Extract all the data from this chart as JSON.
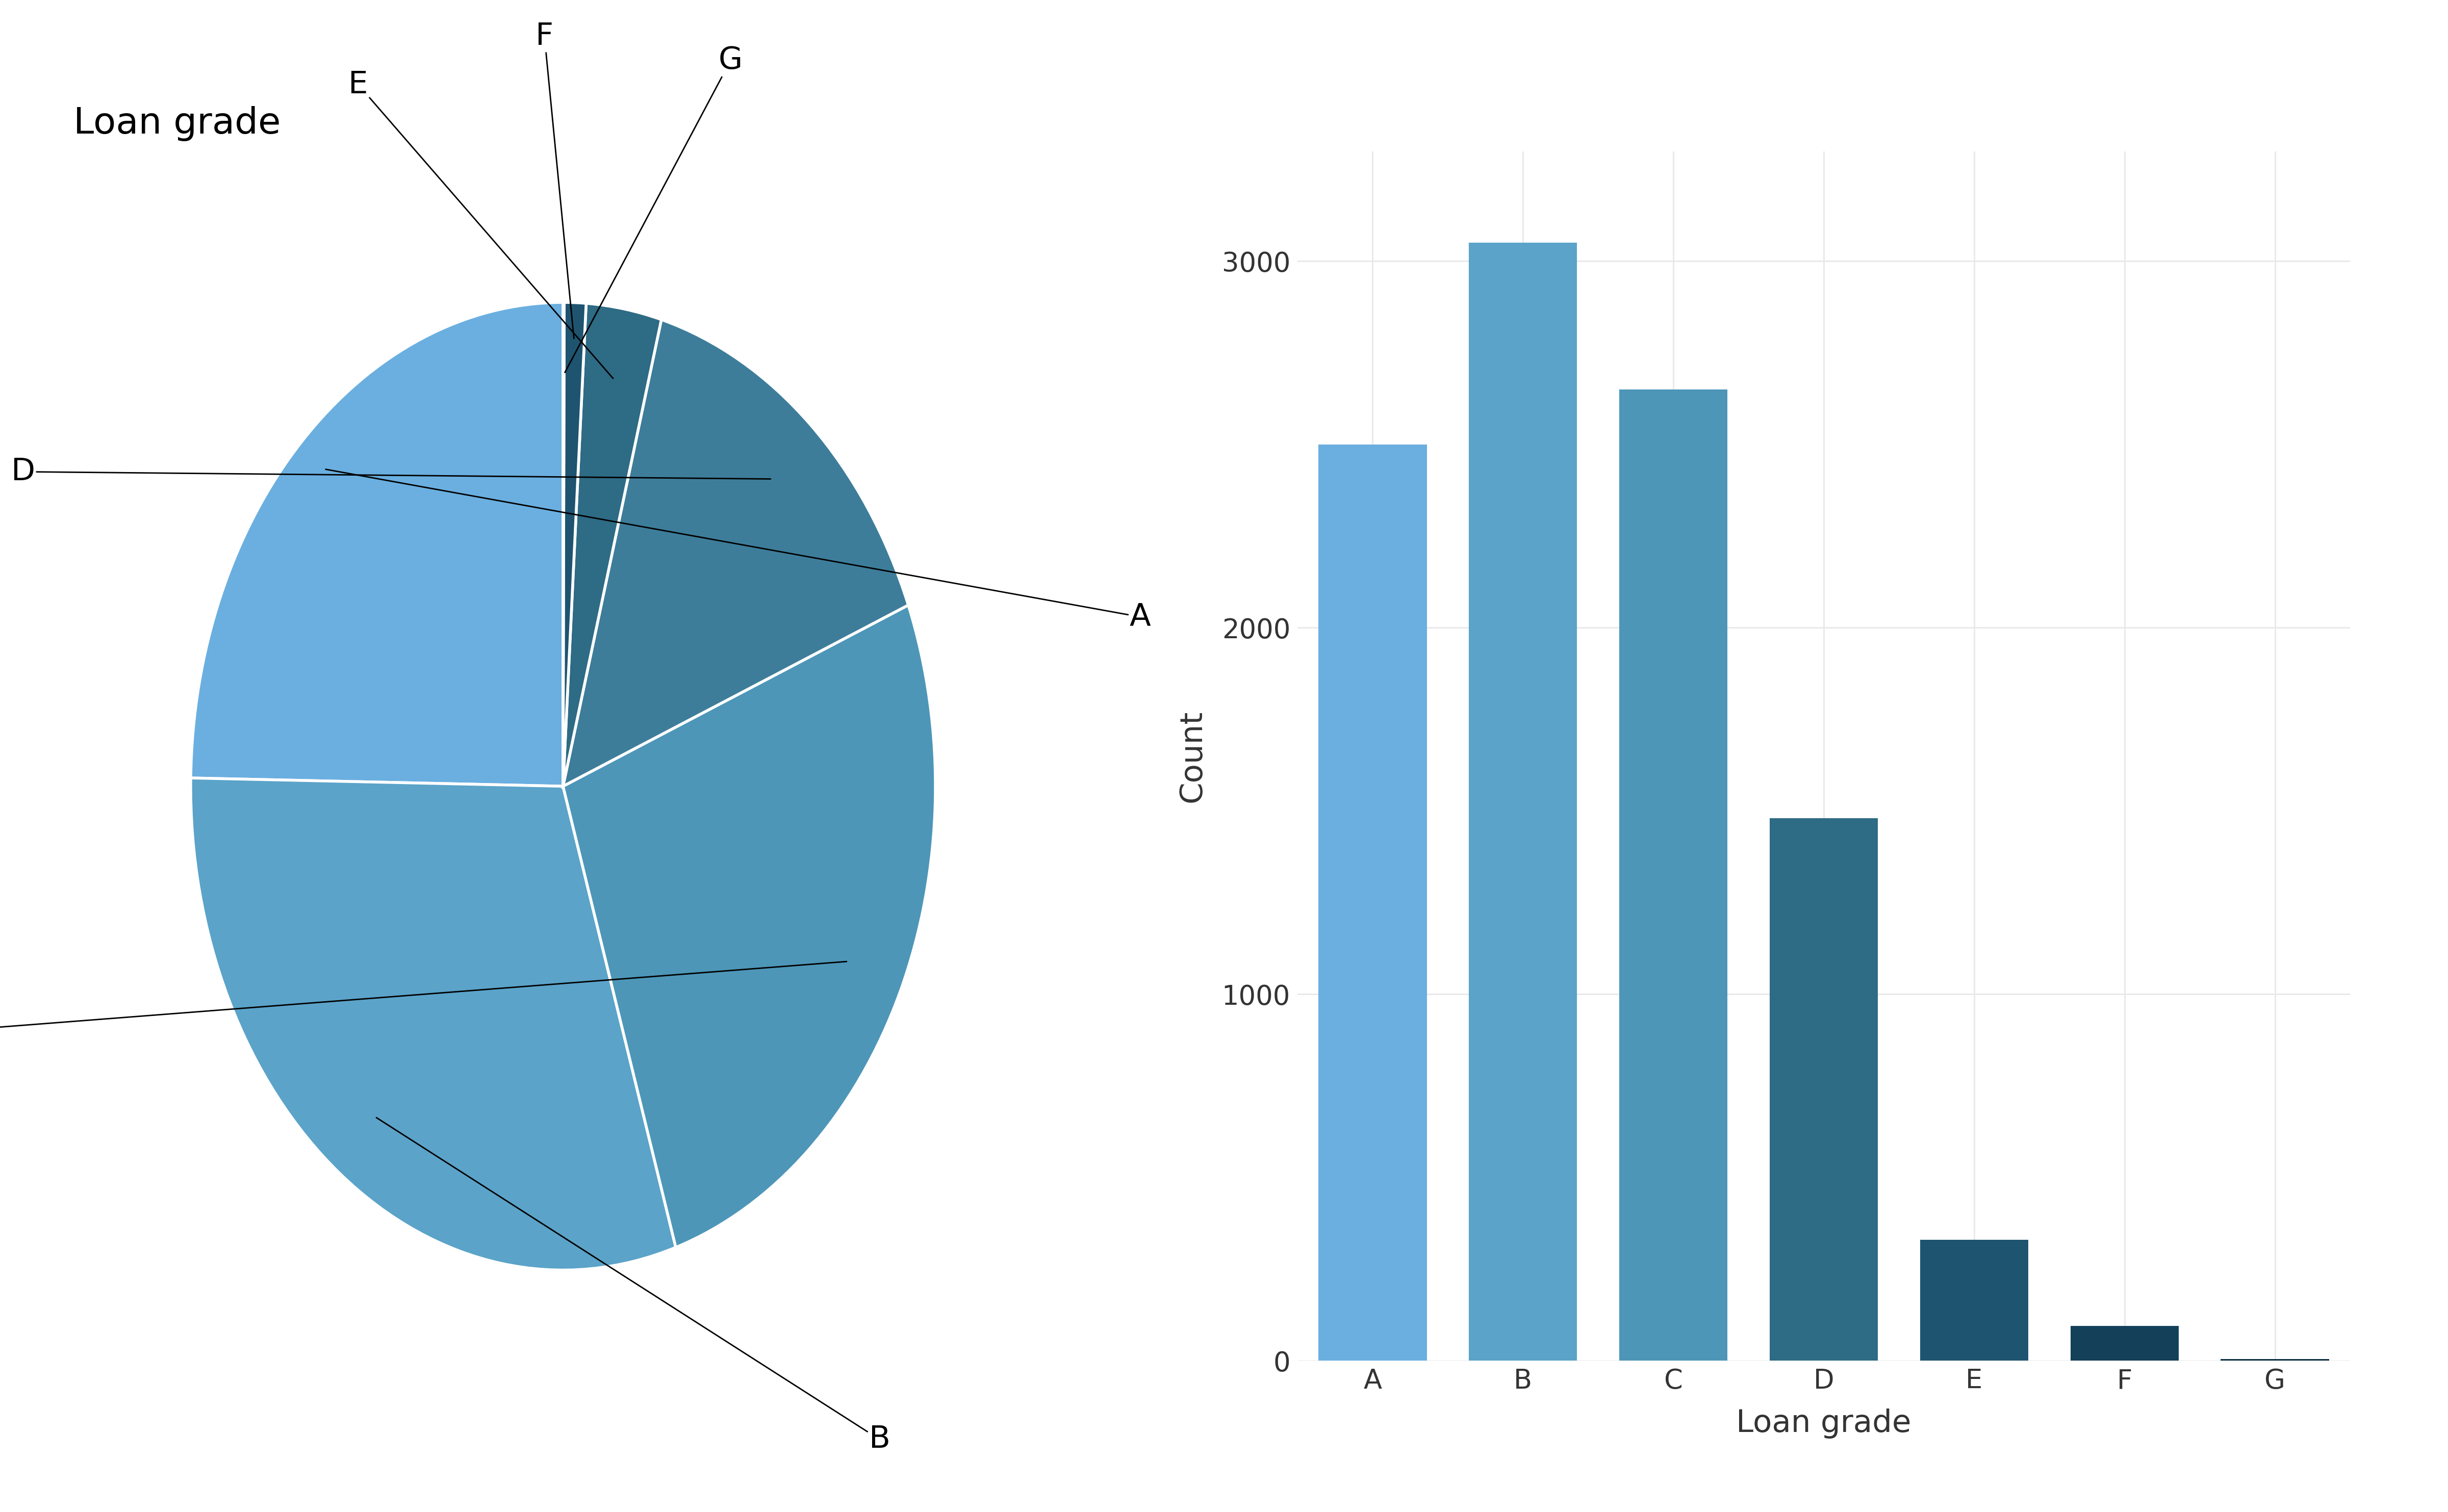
{
  "title": "Loan grade",
  "grades": [
    "A",
    "B",
    "C",
    "D",
    "E",
    "F",
    "G"
  ],
  "counts": [
    2500,
    3050,
    2650,
    1480,
    330,
    95,
    5
  ],
  "pie_colors": [
    "#6aafe0",
    "#5ba3c9",
    "#4d96b8",
    "#3d7d9a",
    "#2e6b85",
    "#1e5470",
    "#14405a"
  ],
  "bar_colors": [
    "#6aafe0",
    "#5ba3c9",
    "#4d96b8",
    "#2e6b85",
    "#1e5470",
    "#14405a",
    "#0d2d42"
  ],
  "pie_startangle": 90,
  "ylabel": "Count",
  "xlabel": "Loan grade",
  "yticks": [
    0,
    1000,
    2000,
    3000
  ],
  "background_color": "#ffffff",
  "grid_color": "#e8e8e8",
  "title_fontsize": 52,
  "axis_label_fontsize": 44,
  "tick_fontsize": 38,
  "pie_label_fontsize": 44
}
